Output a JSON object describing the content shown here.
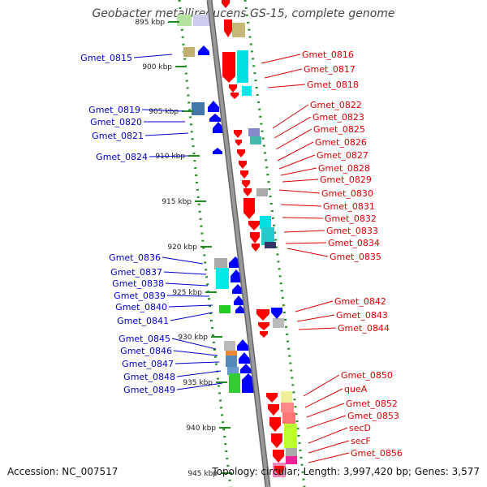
{
  "title": "Geobacter metallireducens GS-15, complete genome",
  "footer": {
    "accession": "Accession: NC_007517",
    "topology": "Topology: circular; Length: 3,997,420 bp; Genes: 3,577"
  },
  "colors": {
    "forward_label": "#0000cc",
    "reverse_label": "#dd0000",
    "backbone": "#999999",
    "ruler_dots": "#228b22",
    "forward_gene": "#0000ff",
    "reverse_gene": "#ff0000"
  },
  "ruler": [
    {
      "label": "895 kbp"
    },
    {
      "label": "900 kbp"
    },
    {
      "label": "905 kbp"
    },
    {
      "label": "910 kbp"
    },
    {
      "label": "915 kbp"
    },
    {
      "label": "920 kbp"
    },
    {
      "label": "925 kbp"
    },
    {
      "label": "930 kbp"
    },
    {
      "label": "935 kbp"
    },
    {
      "label": "940 kbp"
    },
    {
      "label": "945 kbp"
    }
  ],
  "left_labels": [
    {
      "name": "Gmet_0815"
    },
    {
      "name": "Gmet_0819"
    },
    {
      "name": "Gmet_0820"
    },
    {
      "name": "Gmet_0821"
    },
    {
      "name": "Gmet_0824"
    },
    {
      "name": "Gmet_0836"
    },
    {
      "name": "Gmet_0837"
    },
    {
      "name": "Gmet_0838"
    },
    {
      "name": "Gmet_0839"
    },
    {
      "name": "Gmet_0840"
    },
    {
      "name": "Gmet_0841"
    },
    {
      "name": "Gmet_0845"
    },
    {
      "name": "Gmet_0846"
    },
    {
      "name": "Gmet_0847"
    },
    {
      "name": "Gmet_0848"
    },
    {
      "name": "Gmet_0849"
    }
  ],
  "right_labels": [
    {
      "name": "Gmet_0816"
    },
    {
      "name": "Gmet_0817"
    },
    {
      "name": "Gmet_0818"
    },
    {
      "name": "Gmet_0822"
    },
    {
      "name": "Gmet_0823"
    },
    {
      "name": "Gmet_0825"
    },
    {
      "name": "Gmet_0826"
    },
    {
      "name": "Gmet_0827"
    },
    {
      "name": "Gmet_0828"
    },
    {
      "name": "Gmet_0829"
    },
    {
      "name": "Gmet_0830"
    },
    {
      "name": "Gmet_0831"
    },
    {
      "name": "Gmet_0832"
    },
    {
      "name": "Gmet_0833"
    },
    {
      "name": "Gmet_0834"
    },
    {
      "name": "Gmet_0835"
    },
    {
      "name": "Gmet_0842"
    },
    {
      "name": "Gmet_0843"
    },
    {
      "name": "Gmet_0844"
    },
    {
      "name": "Gmet_0850"
    },
    {
      "name": "queA"
    },
    {
      "name": "Gmet_0852"
    },
    {
      "name": "Gmet_0853"
    },
    {
      "name": "secD"
    },
    {
      "name": "secF"
    },
    {
      "name": "Gmet_0856"
    }
  ]
}
